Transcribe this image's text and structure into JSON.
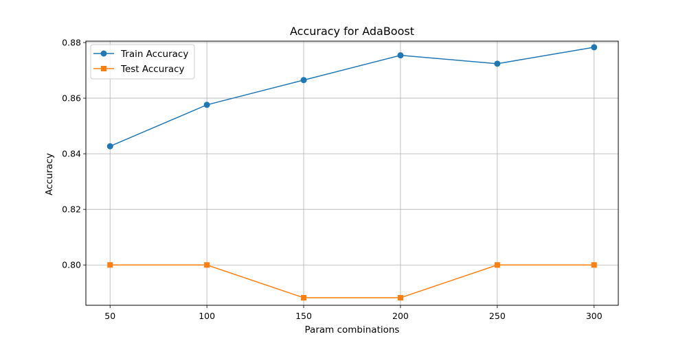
{
  "chart_data": {
    "type": "line",
    "title": "Accuracy for AdaBoost",
    "xlabel": "Param combinations",
    "ylabel": "Accuracy",
    "x": [
      50,
      100,
      150,
      200,
      250,
      300
    ],
    "xticks": [
      "50",
      "100",
      "150",
      "200",
      "250",
      "300"
    ],
    "yticks": [
      "0.80",
      "0.82",
      "0.84",
      "0.86",
      "0.88"
    ],
    "ylim": [
      0.7855,
      0.8805
    ],
    "xlim": [
      37.5,
      312.5
    ],
    "grid": true,
    "legend_position": "top-left",
    "series": [
      {
        "name": "Train Accuracy",
        "color": "#1f77b4",
        "marker": "circle",
        "values": [
          0.8427,
          0.8576,
          0.8665,
          0.8754,
          0.8724,
          0.8783
        ]
      },
      {
        "name": "Test Accuracy",
        "color": "#ff7f0e",
        "marker": "square",
        "values": [
          0.8,
          0.8,
          0.7882,
          0.7882,
          0.8,
          0.8
        ]
      }
    ]
  }
}
